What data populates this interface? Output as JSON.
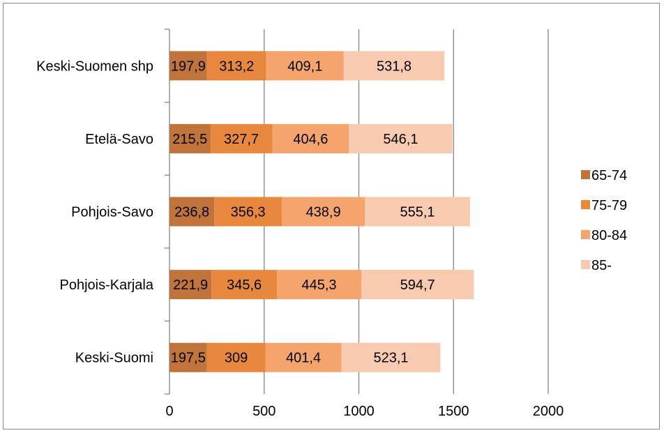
{
  "chart_data": {
    "type": "bar",
    "orientation": "horizontal",
    "stacked": true,
    "categories": [
      "Keski-Suomen shp",
      "Etelä-Savo",
      "Pohjois-Savo",
      "Pohjois-Karjala",
      "Keski-Suomi"
    ],
    "series": [
      {
        "name": "65-74",
        "color": "#C0733A",
        "values": [
          197.9,
          215.5,
          236.8,
          221.9,
          197.5
        ],
        "labels": [
          "197,9",
          "215,5",
          "236,8",
          "221,9",
          "197,5"
        ]
      },
      {
        "name": "75-79",
        "color": "#E8883E",
        "values": [
          313.2,
          327.7,
          356.3,
          345.6,
          309
        ],
        "labels": [
          "313,2",
          "327,7",
          "356,3",
          "345,6",
          "309"
        ]
      },
      {
        "name": "80-84",
        "color": "#F5A46E",
        "values": [
          409.1,
          404.6,
          438.9,
          445.3,
          401.4
        ],
        "labels": [
          "409,1",
          "404,6",
          "438,9",
          "445,3",
          "401,4"
        ]
      },
      {
        "name": "85-",
        "color": "#F8CAB0",
        "values": [
          531.8,
          546.1,
          555.1,
          594.7,
          523.1
        ],
        "labels": [
          "531,8",
          "546,1",
          "555,1",
          "594,7",
          "523,1"
        ]
      }
    ],
    "xlim": [
      0,
      2000
    ],
    "xticks": [
      0,
      500,
      1000,
      1500,
      2000
    ],
    "xtick_labels": [
      "0",
      "500",
      "1000",
      "1500",
      "2000"
    ],
    "grid": "vertical",
    "legend_position": "right",
    "title": "",
    "xlabel": "",
    "ylabel": ""
  }
}
